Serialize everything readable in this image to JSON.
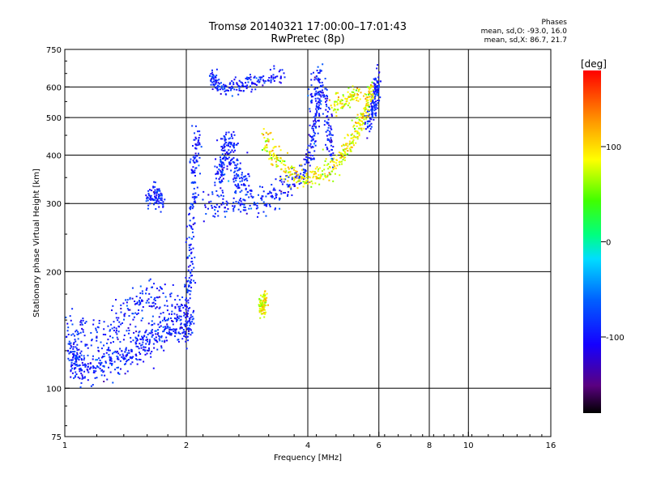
{
  "header": {
    "title": "Tromsø 20140321 17:00:00–17:01:43",
    "subtitle": "RwPretec (8p)"
  },
  "stats": {
    "heading": "Phases",
    "line_o": "mean, sd,O: -93.0, 16.0",
    "line_x": "mean, sd,X: 86.7, 21.7"
  },
  "colorbar": {
    "unit": "[deg]",
    "tick_labels": [
      "100",
      "0",
      "-100"
    ],
    "tick_values": [
      100,
      0,
      -100
    ],
    "range": [
      -180,
      180
    ]
  },
  "chart_data": {
    "type": "scatter",
    "title": "Tromsø 20140321 17:00:00–17:01:43",
    "subtitle": "RwPretec (8p)",
    "xlabel": "Frequency [MHz]",
    "ylabel": "Stationary phase Virtual Height [km]",
    "xscale": "log",
    "yscale": "log",
    "xlim": [
      1,
      16
    ],
    "ylim": [
      75,
      750
    ],
    "x_ticks": [
      1,
      2,
      4,
      6,
      8,
      10,
      16
    ],
    "x_tick_labels": [
      "1",
      "2",
      "4",
      "6",
      "8",
      "10",
      "16"
    ],
    "x_grid": [
      2,
      4,
      6,
      8,
      10
    ],
    "y_ticks": [
      75,
      100,
      200,
      300,
      400,
      500,
      600,
      750
    ],
    "y_tick_labels": [
      "75",
      "100",
      "200",
      "300",
      "400",
      "500",
      "600",
      "750"
    ],
    "y_grid": [
      100,
      200,
      300,
      400,
      500,
      600
    ],
    "color_variable": "phase [deg]",
    "color_range": [
      -180,
      180
    ],
    "series": [
      {
        "name": "O",
        "phase_mean": -93.0,
        "phase_sd": 16.0,
        "traces": [
          {
            "points": [
              [
                1.03,
                124
              ],
              [
                1.06,
                116
              ],
              [
                1.1,
                112
              ],
              [
                1.2,
                114
              ],
              [
                1.3,
                117
              ],
              [
                1.4,
                121
              ],
              [
                1.5,
                127
              ],
              [
                1.6,
                134
              ],
              [
                1.7,
                139
              ],
              [
                1.85,
                142
              ],
              [
                2.0,
                146
              ],
              [
                2.06,
                150
              ]
            ],
            "spread": 0.05
          },
          {
            "points": [
              [
                1.02,
                137
              ],
              [
                1.1,
                134
              ],
              [
                1.3,
                142
              ],
              [
                1.45,
                160
              ],
              [
                1.6,
                170
              ],
              [
                1.8,
                163
              ],
              [
                2.0,
                150
              ]
            ],
            "spread": 0.07
          },
          {
            "points": [
              [
                2.0,
                160
              ],
              [
                2.04,
                200
              ],
              [
                2.08,
                280
              ],
              [
                2.1,
                380
              ],
              [
                2.12,
                460
              ]
            ],
            "spread": 0.05
          },
          {
            "points": [
              [
                2.2,
                300
              ],
              [
                2.6,
                294
              ],
              [
                3.0,
                304
              ],
              [
                3.4,
                320
              ],
              [
                3.8,
                350
              ],
              [
                4.1,
                410
              ],
              [
                4.2,
                500
              ],
              [
                4.3,
                600
              ]
            ],
            "spread": 0.04
          },
          {
            "points": [
              [
                2.4,
                330
              ],
              [
                2.45,
                380
              ],
              [
                2.5,
                420
              ],
              [
                2.6,
                400
              ],
              [
                2.7,
                350
              ],
              [
                2.85,
                320
              ]
            ],
            "spread": 0.06
          },
          {
            "points": [
              [
                2.3,
                640
              ],
              [
                2.4,
                600
              ],
              [
                2.7,
                598
              ],
              [
                3.0,
                625
              ],
              [
                3.5,
                645
              ]
            ],
            "spread": 0.025
          },
          {
            "points": [
              [
                1.6,
                308
              ],
              [
                1.68,
                318
              ],
              [
                1.75,
                305
              ]
            ],
            "spread": 0.03
          },
          {
            "points": [
              [
                4.05,
                560
              ],
              [
                4.3,
                640
              ],
              [
                4.5,
                480
              ],
              [
                4.6,
                400
              ]
            ],
            "spread": 0.05
          },
          {
            "points": [
              [
                5.6,
                470
              ],
              [
                5.8,
                520
              ],
              [
                5.9,
                580
              ],
              [
                6.0,
                620
              ]
            ],
            "spread": 0.04
          }
        ]
      },
      {
        "name": "X",
        "phase_mean": 86.7,
        "phase_sd": 21.7,
        "traces": [
          {
            "points": [
              [
                3.1,
                440
              ],
              [
                3.3,
                400
              ],
              [
                3.6,
                360
              ],
              [
                4.0,
                345
              ],
              [
                4.4,
                360
              ],
              [
                4.8,
                390
              ],
              [
                5.1,
                430
              ],
              [
                5.4,
                480
              ],
              [
                5.6,
                540
              ],
              [
                5.8,
                600
              ]
            ],
            "spread": 0.035
          },
          {
            "points": [
              [
                3.05,
                162
              ],
              [
                3.1,
                167
              ],
              [
                3.15,
                165
              ]
            ],
            "spread": 0.03
          },
          {
            "points": [
              [
                4.6,
                540
              ],
              [
                5.0,
                560
              ],
              [
                5.4,
                575
              ]
            ],
            "spread": 0.03
          }
        ]
      }
    ]
  }
}
